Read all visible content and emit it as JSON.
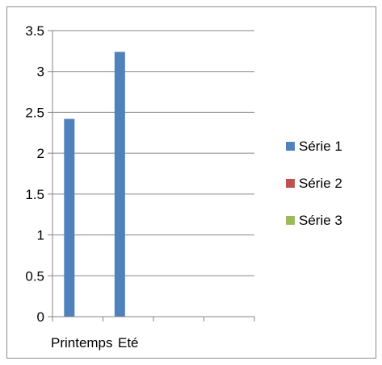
{
  "chart_data": {
    "type": "bar",
    "title": "",
    "xlabel": "",
    "ylabel": "",
    "categories": [
      "Printemps",
      "Eté",
      "",
      ""
    ],
    "ylim": [
      0,
      3.5
    ],
    "y_ticks": [
      "0",
      "0.5",
      "1",
      "1.5",
      "2",
      "2.5",
      "3",
      "3.5"
    ],
    "grid": true,
    "legend_position": "right",
    "series": [
      {
        "name": "Série 1",
        "color": "#4f81bd",
        "values": [
          2.42,
          3.24,
          null,
          null
        ]
      },
      {
        "name": "Série 2",
        "color": "#c0504d",
        "values": [
          null,
          null,
          null,
          null
        ]
      },
      {
        "name": "Série 3",
        "color": "#9bbb59",
        "values": [
          null,
          null,
          null,
          null
        ]
      }
    ]
  }
}
